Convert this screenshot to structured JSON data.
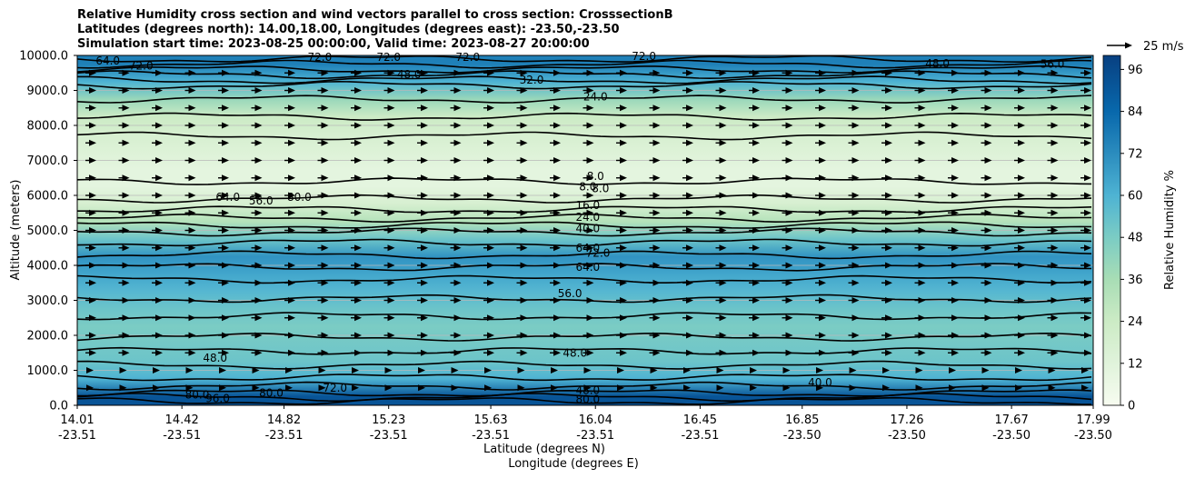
{
  "chart_data": {
    "type": "heatmap",
    "title_lines": [
      "Relative Humidity cross section and wind vectors parallel to cross section: CrosssectionB",
      "Latitudes (degrees north): 14.00,18.00, Longitudes (degrees east): -23.50,-23.50",
      "Simulation start time: 2023-08-25 00:00:00, Valid time: 2023-08-27 20:00:00"
    ],
    "ylabel": "Altitude (meters)",
    "xlabel_line1": "Latitude (degrees N)",
    "xlabel_line2": "Longitude (degrees E)",
    "ylim": [
      0,
      10000
    ],
    "yticks": [
      "0.0",
      "1000.0",
      "2000.0",
      "3000.0",
      "4000.0",
      "5000.0",
      "6000.0",
      "7000.0",
      "8000.0",
      "9000.0",
      "10000.0"
    ],
    "ytick_values": [
      0,
      1000,
      2000,
      3000,
      4000,
      5000,
      6000,
      7000,
      8000,
      9000,
      10000
    ],
    "xticks": [
      {
        "lat": "14.01",
        "lon": "-23.51"
      },
      {
        "lat": "14.42",
        "lon": "-23.51"
      },
      {
        "lat": "14.82",
        "lon": "-23.51"
      },
      {
        "lat": "15.23",
        "lon": "-23.51"
      },
      {
        "lat": "15.63",
        "lon": "-23.51"
      },
      {
        "lat": "16.04",
        "lon": "-23.51"
      },
      {
        "lat": "16.45",
        "lon": "-23.51"
      },
      {
        "lat": "16.85",
        "lon": "-23.50"
      },
      {
        "lat": "17.26",
        "lon": "-23.50"
      },
      {
        "lat": "17.67",
        "lon": "-23.50"
      },
      {
        "lat": "17.99",
        "lon": "-23.50"
      }
    ],
    "colorbar": {
      "label": "Relative Humidity %",
      "ticks": [
        "0",
        "12",
        "24",
        "36",
        "48",
        "60",
        "72",
        "84",
        "96"
      ],
      "tick_values": [
        0,
        12,
        24,
        36,
        48,
        60,
        72,
        84,
        96
      ],
      "range": [
        0,
        100
      ]
    },
    "quiver_key": "25 m/s",
    "grid": true,
    "colors": {
      "low": "#f7fcf0",
      "mid": "#7bccc4",
      "high": "#084081"
    },
    "humidity_by_altitude": [
      {
        "altitude": 250,
        "rh": 92
      },
      {
        "altitude": 750,
        "rh": 60
      },
      {
        "altitude": 1250,
        "rh": 52
      },
      {
        "altitude": 1750,
        "rh": 50
      },
      {
        "altitude": 2250,
        "rh": 48
      },
      {
        "altitude": 2750,
        "rh": 52
      },
      {
        "altitude": 3250,
        "rh": 58
      },
      {
        "altitude": 3750,
        "rh": 64
      },
      {
        "altitude": 4250,
        "rh": 70
      },
      {
        "altitude": 4750,
        "rh": 52
      },
      {
        "altitude": 5250,
        "rh": 32
      },
      {
        "altitude": 5750,
        "rh": 18
      },
      {
        "altitude": 6250,
        "rh": 10
      },
      {
        "altitude": 6750,
        "rh": 10
      },
      {
        "altitude": 7250,
        "rh": 14
      },
      {
        "altitude": 7750,
        "rh": 18
      },
      {
        "altitude": 8250,
        "rh": 24
      },
      {
        "altitude": 8750,
        "rh": 40
      },
      {
        "altitude": 9250,
        "rh": 60
      },
      {
        "altitude": 9750,
        "rh": 76
      }
    ],
    "contour_labels": [
      {
        "text": "64.0",
        "x": 14.13,
        "alt": 9850
      },
      {
        "text": "72.0",
        "x": 14.26,
        "alt": 9700
      },
      {
        "text": "72.0",
        "x": 14.96,
        "alt": 9950
      },
      {
        "text": "72.0",
        "x": 15.23,
        "alt": 9950
      },
      {
        "text": "72.0",
        "x": 15.54,
        "alt": 9950
      },
      {
        "text": "48.0",
        "x": 15.31,
        "alt": 9450
      },
      {
        "text": "32.0",
        "x": 15.79,
        "alt": 9300
      },
      {
        "text": "24.0",
        "x": 16.04,
        "alt": 8820
      },
      {
        "text": "72.0",
        "x": 16.23,
        "alt": 9980
      },
      {
        "text": "48.0",
        "x": 17.38,
        "alt": 9760
      },
      {
        "text": "56.0",
        "x": 17.83,
        "alt": 9750
      },
      {
        "text": "8.0",
        "x": 16.04,
        "alt": 6550
      },
      {
        "text": "8.0",
        "x": 16.01,
        "alt": 6250
      },
      {
        "text": "8.0",
        "x": 16.06,
        "alt": 6200
      },
      {
        "text": "16.0",
        "x": 16.01,
        "alt": 5720
      },
      {
        "text": "24.0",
        "x": 16.01,
        "alt": 5380
      },
      {
        "text": "40.0",
        "x": 16.01,
        "alt": 5050
      },
      {
        "text": "80.0",
        "x": 14.88,
        "alt": 5950
      },
      {
        "text": "64.0",
        "x": 14.6,
        "alt": 5950
      },
      {
        "text": "56.0",
        "x": 14.73,
        "alt": 5850
      },
      {
        "text": "64.0",
        "x": 16.01,
        "alt": 4500
      },
      {
        "text": "72.0",
        "x": 16.05,
        "alt": 4350
      },
      {
        "text": "64.0",
        "x": 16.01,
        "alt": 3950
      },
      {
        "text": "56.0",
        "x": 15.94,
        "alt": 3200
      },
      {
        "text": "48.0",
        "x": 15.96,
        "alt": 1500
      },
      {
        "text": "48.0",
        "x": 14.55,
        "alt": 1350
      },
      {
        "text": "48.0",
        "x": 16.01,
        "alt": 430
      },
      {
        "text": "80.0",
        "x": 16.01,
        "alt": 170
      },
      {
        "text": "80.0",
        "x": 14.48,
        "alt": 300
      },
      {
        "text": "96.0",
        "x": 14.56,
        "alt": 200
      },
      {
        "text": "80.0",
        "x": 14.77,
        "alt": 350
      },
      {
        "text": "72.0",
        "x": 15.02,
        "alt": 500
      },
      {
        "text": "40.0",
        "x": 16.92,
        "alt": 650
      }
    ]
  }
}
